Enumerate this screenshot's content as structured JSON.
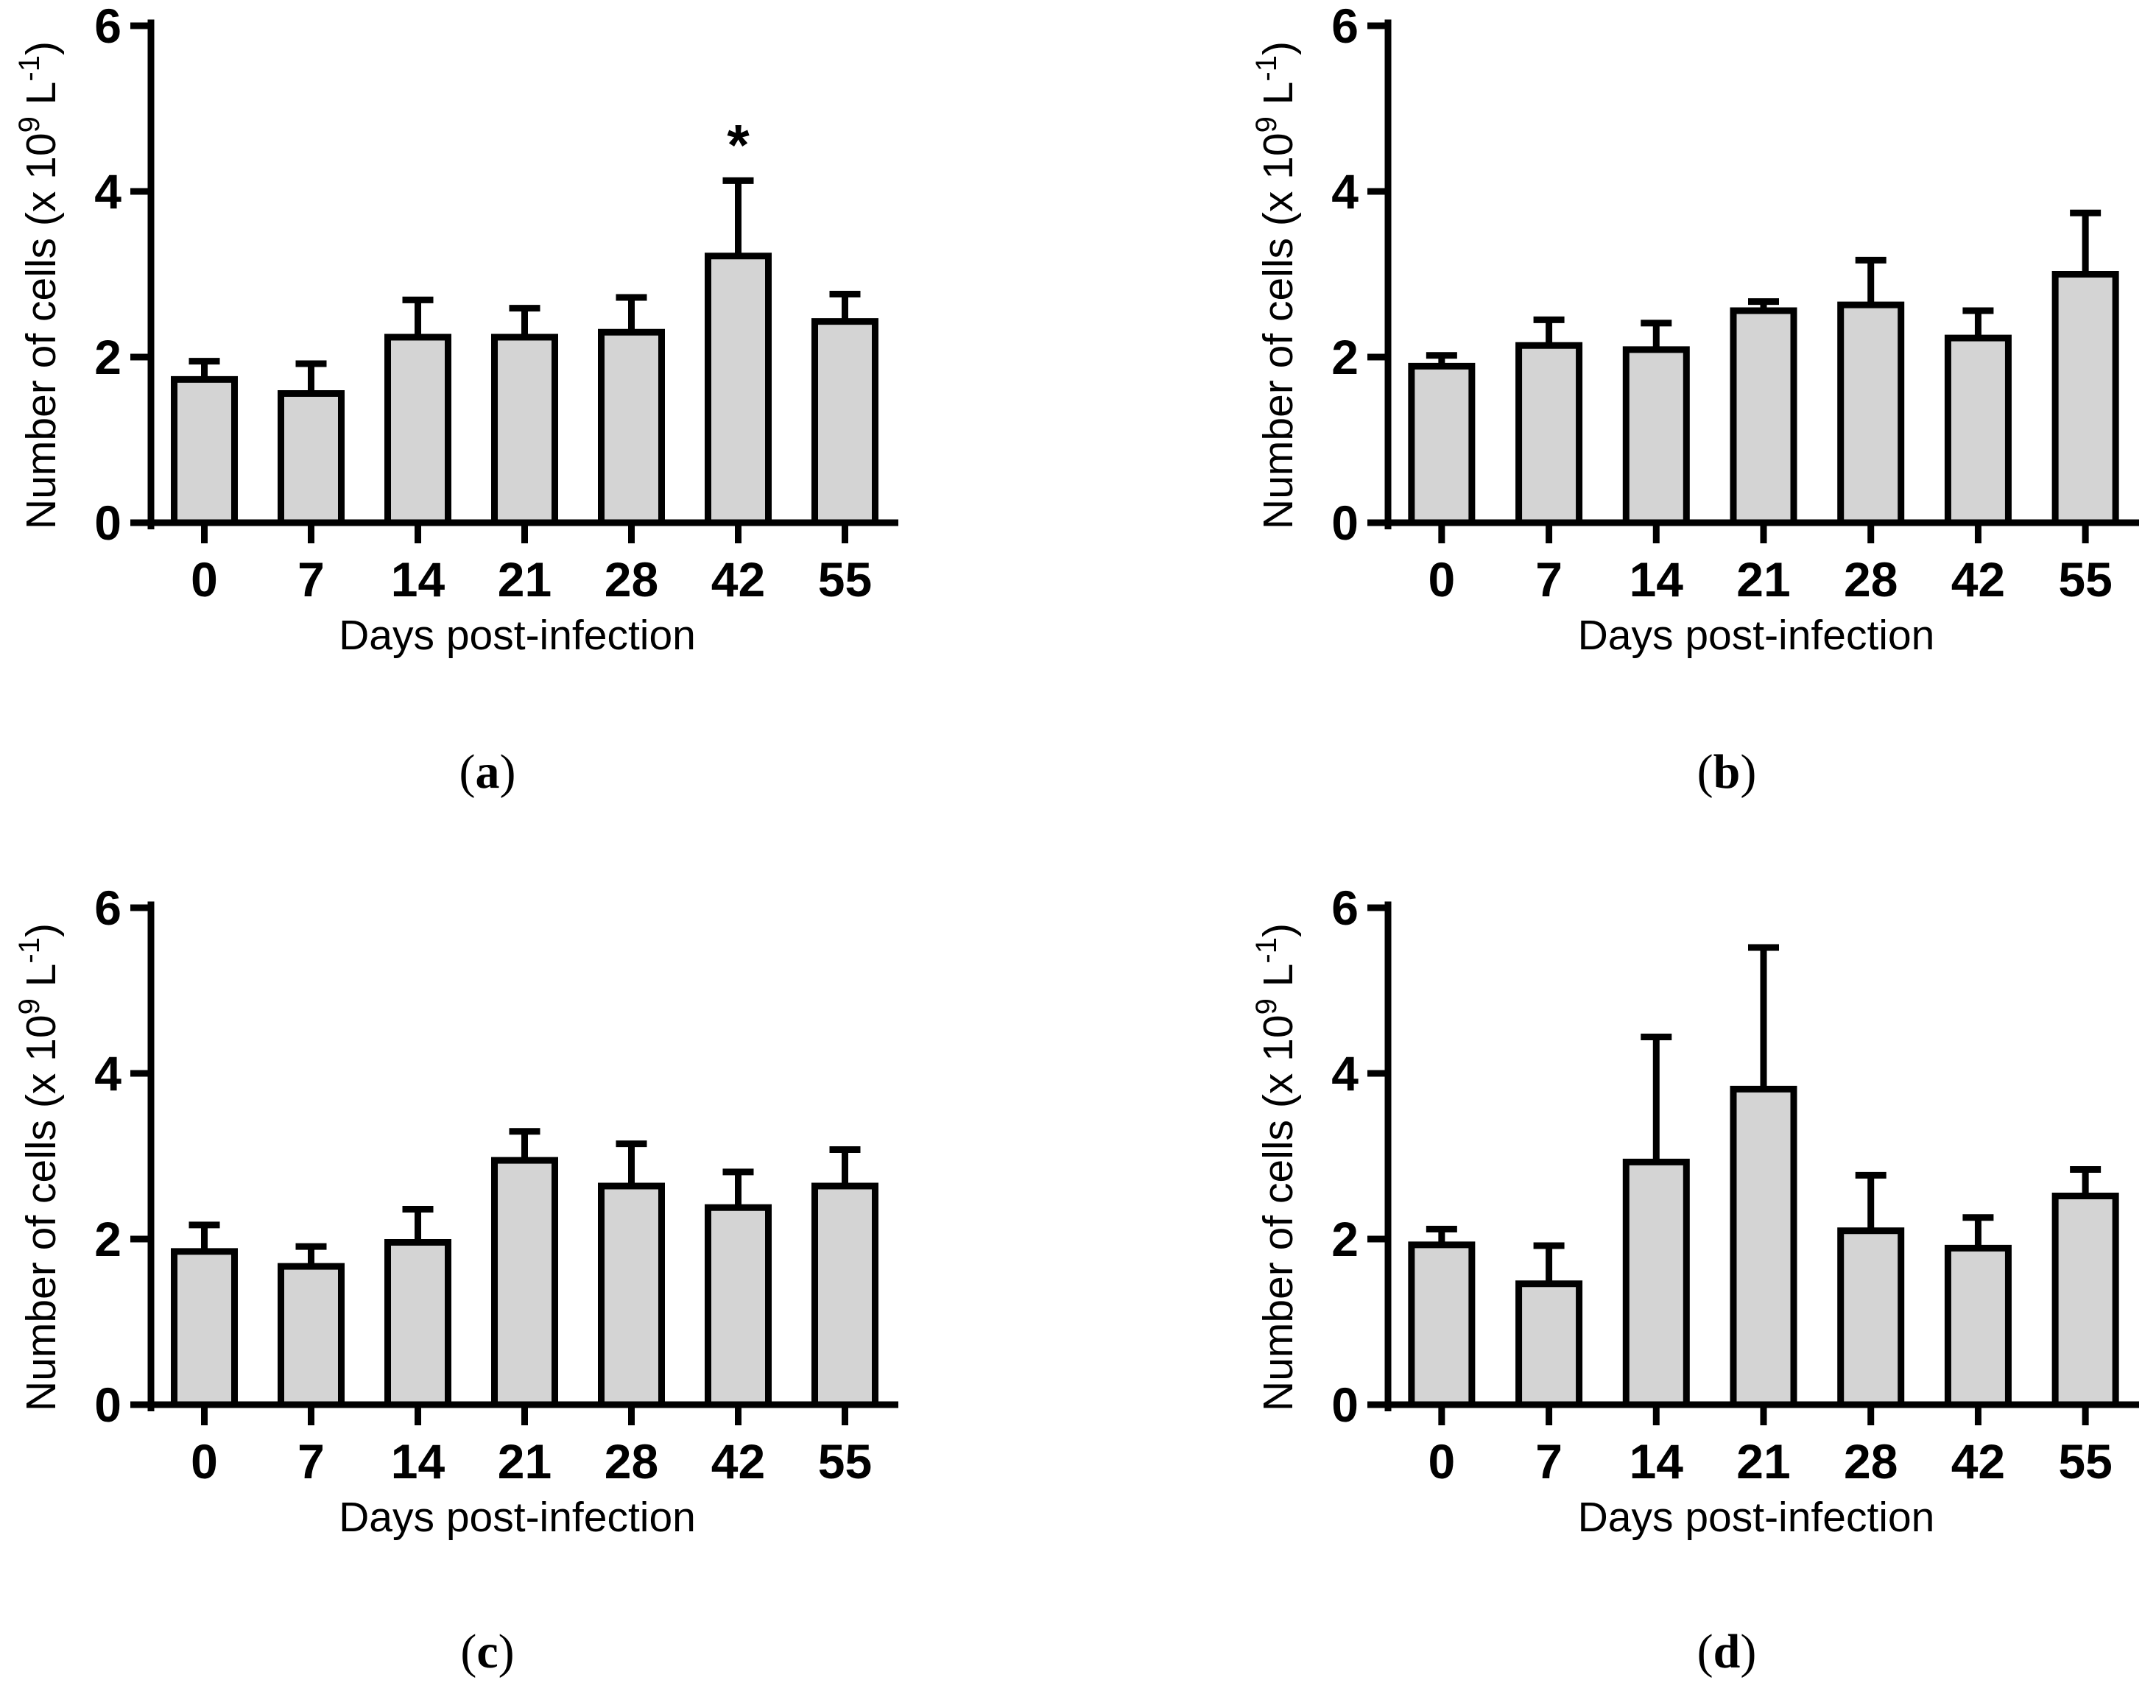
{
  "figure": {
    "colors": {
      "bar_fill": "#d4d4d4",
      "stroke": "#000000",
      "background": "#ffffff"
    }
  },
  "chart_data": [
    {
      "panel": "a",
      "panel_label": {
        "open": "(",
        "letter": "a",
        "close": ")"
      },
      "type": "bar",
      "categories": [
        "0",
        "7",
        "14",
        "21",
        "28",
        "42",
        "55"
      ],
      "values": [
        1.73,
        1.56,
        2.24,
        2.24,
        2.3,
        3.22,
        2.43
      ],
      "error_upper": [
        1.95,
        1.92,
        2.69,
        2.59,
        2.72,
        4.13,
        2.76
      ],
      "annotations": [
        {
          "category": "42",
          "text": "*"
        }
      ],
      "xlabel": "Days post-infection",
      "ylabel": {
        "main": "Number of cells (x 10",
        "exp1": "9",
        "mid": " L",
        "exp2": "-1",
        "close": ")"
      },
      "ylim": [
        0,
        6
      ],
      "yticks": [
        "0",
        "2",
        "4",
        "6"
      ]
    },
    {
      "panel": "b",
      "panel_label": {
        "open": "(",
        "letter": "b",
        "close": ")"
      },
      "type": "bar",
      "categories": [
        "0",
        "7",
        "14",
        "21",
        "28",
        "42",
        "55"
      ],
      "values": [
        1.89,
        2.14,
        2.09,
        2.56,
        2.63,
        2.23,
        3.0
      ],
      "error_upper": [
        2.02,
        2.45,
        2.41,
        2.67,
        3.17,
        2.56,
        3.74
      ],
      "annotations": [],
      "xlabel": "Days post-infection",
      "ylabel": {
        "main": "Number of cells (x 10",
        "exp1": "9",
        "mid": " L",
        "exp2": "-1",
        "close": ")"
      },
      "ylim": [
        0,
        6
      ],
      "yticks": [
        "0",
        "2",
        "4",
        "6"
      ]
    },
    {
      "panel": "c",
      "panel_label": {
        "open": "(",
        "letter": "c",
        "close": ")"
      },
      "type": "bar",
      "categories": [
        "0",
        "7",
        "14",
        "21",
        "28",
        "42",
        "55"
      ],
      "values": [
        1.85,
        1.67,
        1.96,
        2.95,
        2.64,
        2.38,
        2.64
      ],
      "error_upper": [
        2.17,
        1.91,
        2.36,
        3.3,
        3.15,
        2.81,
        3.08
      ],
      "annotations": [],
      "xlabel": "Days post-infection",
      "ylabel": {
        "main": "Number of cells (x 10",
        "exp1": "9",
        "mid": " L",
        "exp2": "-1",
        "close": ")"
      },
      "ylim": [
        0,
        6
      ],
      "yticks": [
        "0",
        "2",
        "4",
        "6"
      ]
    },
    {
      "panel": "d",
      "panel_label": {
        "open": "(",
        "letter": "d",
        "close": ")"
      },
      "type": "bar",
      "categories": [
        "0",
        "7",
        "14",
        "21",
        "28",
        "42",
        "55"
      ],
      "values": [
        1.93,
        1.46,
        2.93,
        3.81,
        2.1,
        1.89,
        2.52
      ],
      "error_upper": [
        2.12,
        1.92,
        4.44,
        5.52,
        2.77,
        2.26,
        2.84
      ],
      "annotations": [],
      "xlabel": "Days post-infection",
      "ylabel": {
        "main": "Number of cells (x 10",
        "exp1": "9",
        "mid": " L",
        "exp2": "-1",
        "close": ")"
      },
      "ylim": [
        0,
        6
      ],
      "yticks": [
        "0",
        "2",
        "4",
        "6"
      ]
    }
  ]
}
